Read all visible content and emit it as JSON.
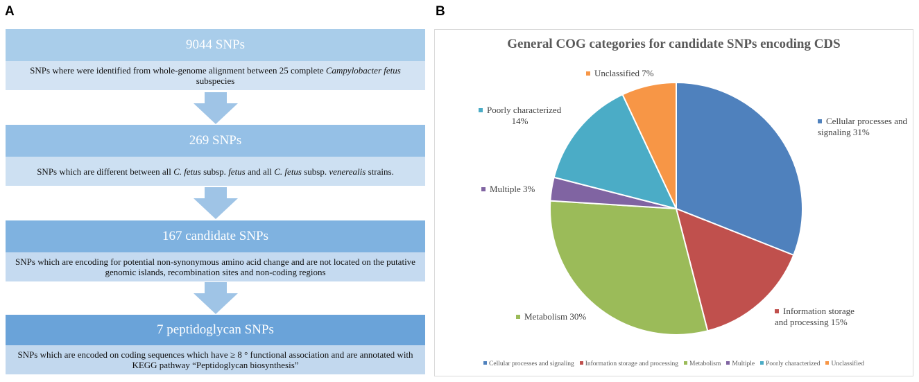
{
  "panels": {
    "a_label": "A",
    "b_label": "B"
  },
  "flowchart": {
    "steps": [
      {
        "title": "9044 SNPs",
        "desc_parts": [
          "SNPs where were identified from whole-genome alignment between 25 complete ",
          "Campylobacter fetus",
          " subspecies"
        ],
        "head_color": "#a9cdea",
        "desc_color": "#d3e3f3"
      },
      {
        "title": "269 SNPs",
        "desc_parts": [
          "SNPs which are different between all ",
          "C. fetus",
          " subsp. ",
          "fetus",
          " and all ",
          "C. fetus",
          " subsp. ",
          "venerealis",
          " strains."
        ],
        "head_color": "#95c0e6",
        "desc_color": "#cde0f2"
      },
      {
        "title": "167 candidate SNPs",
        "desc_parts": [
          "SNPs which are encoding for potential non-synonymous amino acid change and are not located on the putative genomic islands, recombination sites and non-coding regions"
        ],
        "head_color": "#7fb2e0",
        "desc_color": "#c5daf0"
      },
      {
        "title": "7 peptidoglycan SNPs",
        "desc_parts": [
          "SNPs which are encoded on coding sequences which have ≥ 8 ° functional association and are annotated with KEGG pathway “Peptidoglycan biosynthesis”"
        ],
        "head_color": "#6aa3d9",
        "desc_color": "#c2d8ee"
      }
    ],
    "arrow_color": "#9fc4e6"
  },
  "chart_data": {
    "type": "pie",
    "title": "General COG categories for candidate SNPs encoding CDS",
    "categories": [
      "Cellular processes and signaling",
      "Information storage and processing",
      "Metabolism",
      "Multiple",
      "Poorly characterized",
      "Unclassified"
    ],
    "values": [
      31,
      15,
      30,
      3,
      14,
      7
    ],
    "colors": [
      "#4f81bd",
      "#c0504d",
      "#9bbb59",
      "#8064a2",
      "#4bacc6",
      "#f79646"
    ],
    "slice_labels": [
      [
        "Cellular processes and",
        "signaling 31%"
      ],
      [
        "Information storage",
        "and processing 15%"
      ],
      [
        "Metabolism 30%"
      ],
      [
        "Multiple 3%"
      ],
      [
        "Poorly characterized",
        "14%"
      ],
      [
        "Unclassified 7%"
      ]
    ],
    "legend_position": "bottom"
  }
}
